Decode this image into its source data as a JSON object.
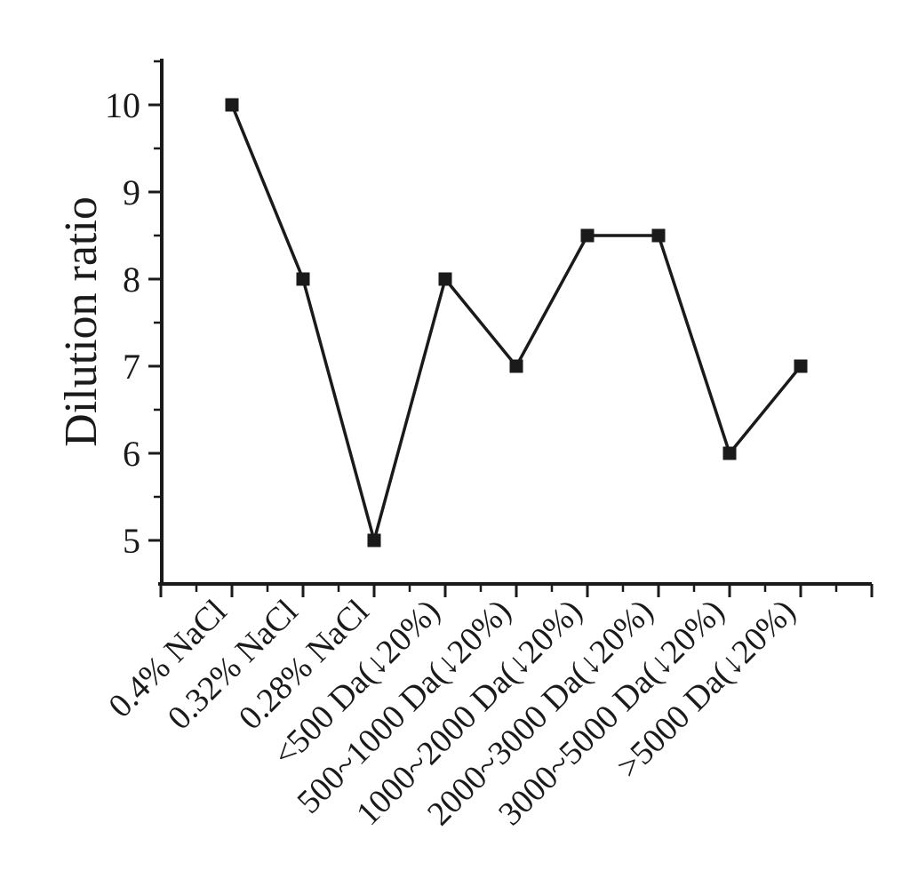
{
  "chart_data": {
    "type": "line",
    "title": "",
    "xlabel": "",
    "ylabel": "Dilution ratio",
    "categories": [
      "0.4% NaCl",
      "0.32% NaCl",
      "0.28% NaCl",
      "<500 Da(↓20%)",
      "500~1000 Da(↓20%)",
      "1000~2000 Da(↓20%)",
      "2000~3000 Da(↓20%)",
      "3000~5000 Da(↓20%)",
      ">5000 Da(↓20%)"
    ],
    "values": [
      10,
      8,
      5,
      8,
      7,
      8.5,
      8.5,
      6,
      7
    ],
    "yticks": [
      5,
      6,
      7,
      8,
      9,
      10
    ],
    "y_minor_tick_interval": 0.5,
    "ylim": [
      4.5,
      10.55
    ],
    "xtick_label_rotation_deg": 45,
    "grid": "off",
    "legend": "none",
    "marker": "filled-square",
    "colors": {
      "line": "#1a1a1a",
      "marker": "#1a1a1a",
      "axis": "#1a1a1a",
      "text": "#1a1a1a",
      "background": "#ffffff"
    }
  }
}
